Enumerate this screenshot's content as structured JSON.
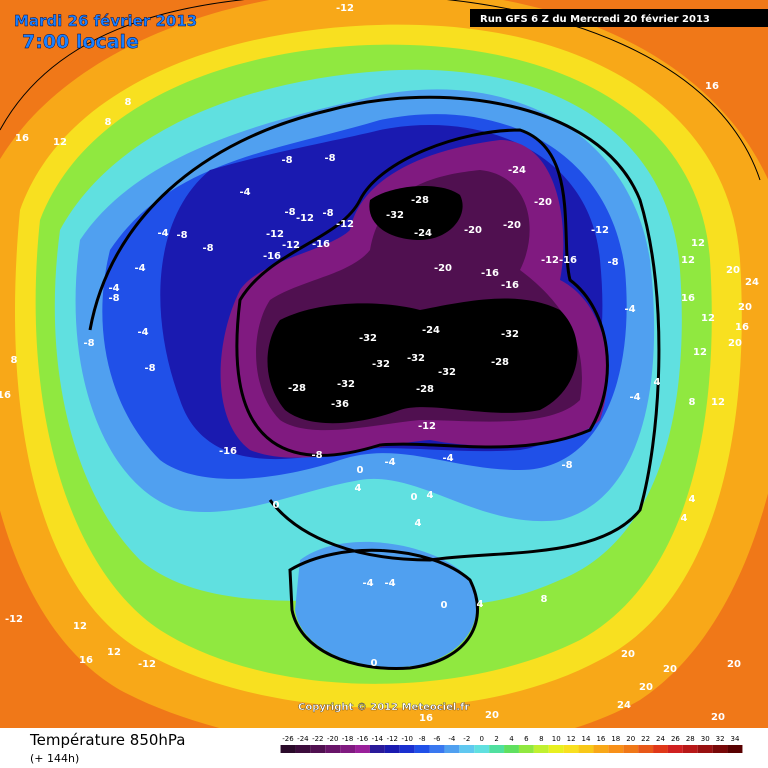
{
  "header": {
    "date": "Mardi 26 février 2013",
    "time": "7:00 locale",
    "run": "Run GFS 6 Z du Mercredi 20 février 2013"
  },
  "footer": {
    "title": "Température 850hPa",
    "lead": "(+ 144h)",
    "copyright": "Copyright © 2012 Meteociel.fr"
  },
  "scale": {
    "labels": [
      -26,
      -24,
      -22,
      -20,
      -18,
      -16,
      -14,
      -12,
      -10,
      -8,
      -6,
      -4,
      -2,
      0,
      2,
      4,
      6,
      8,
      10,
      12,
      14,
      16,
      18,
      20,
      22,
      24,
      26,
      28,
      30,
      32,
      34
    ],
    "colors": [
      "#2a0a2a",
      "#3c0c3c",
      "#501050",
      "#681468",
      "#801a80",
      "#9a209a",
      "#2a1a9a",
      "#1a1ab0",
      "#1a30d0",
      "#2050e8",
      "#3a78f0",
      "#50a0f0",
      "#60c8f0",
      "#60e0e0",
      "#50e0a0",
      "#60e060",
      "#90e840",
      "#c0f030",
      "#e8f020",
      "#f8e020",
      "#f8c818",
      "#f8a818",
      "#f89018",
      "#f07818",
      "#e85818",
      "#e03818",
      "#d02020",
      "#b81818",
      "#981010",
      "#780808",
      "#580000"
    ]
  },
  "contour_labels": [
    -12,
    16,
    8,
    8,
    16,
    12,
    -8,
    -8,
    -24,
    -28,
    -32,
    -20,
    -4,
    -8,
    -12,
    -8,
    -12,
    -24,
    -20,
    -20,
    -12,
    -4,
    -8,
    -12,
    -12,
    -16,
    -8,
    -16,
    -20,
    -16,
    -12,
    -16,
    12,
    12,
    20,
    24,
    -8,
    16,
    20,
    -16,
    -32,
    -24,
    -32,
    12,
    16,
    12,
    20,
    -32,
    -32,
    -28,
    -32,
    -28,
    -32,
    -28,
    -36,
    16,
    -12,
    -16,
    -8,
    -4,
    0,
    -4,
    -8,
    4,
    0,
    0,
    4,
    4,
    4,
    4,
    -4,
    -4,
    0,
    4,
    8,
    -12,
    12,
    12,
    -12,
    16,
    0,
    20,
    20,
    20,
    24,
    20,
    20,
    16,
    20,
    12,
    8,
    -4,
    4,
    -4,
    -8,
    -4,
    -8,
    -4,
    -8,
    -4,
    8
  ]
}
